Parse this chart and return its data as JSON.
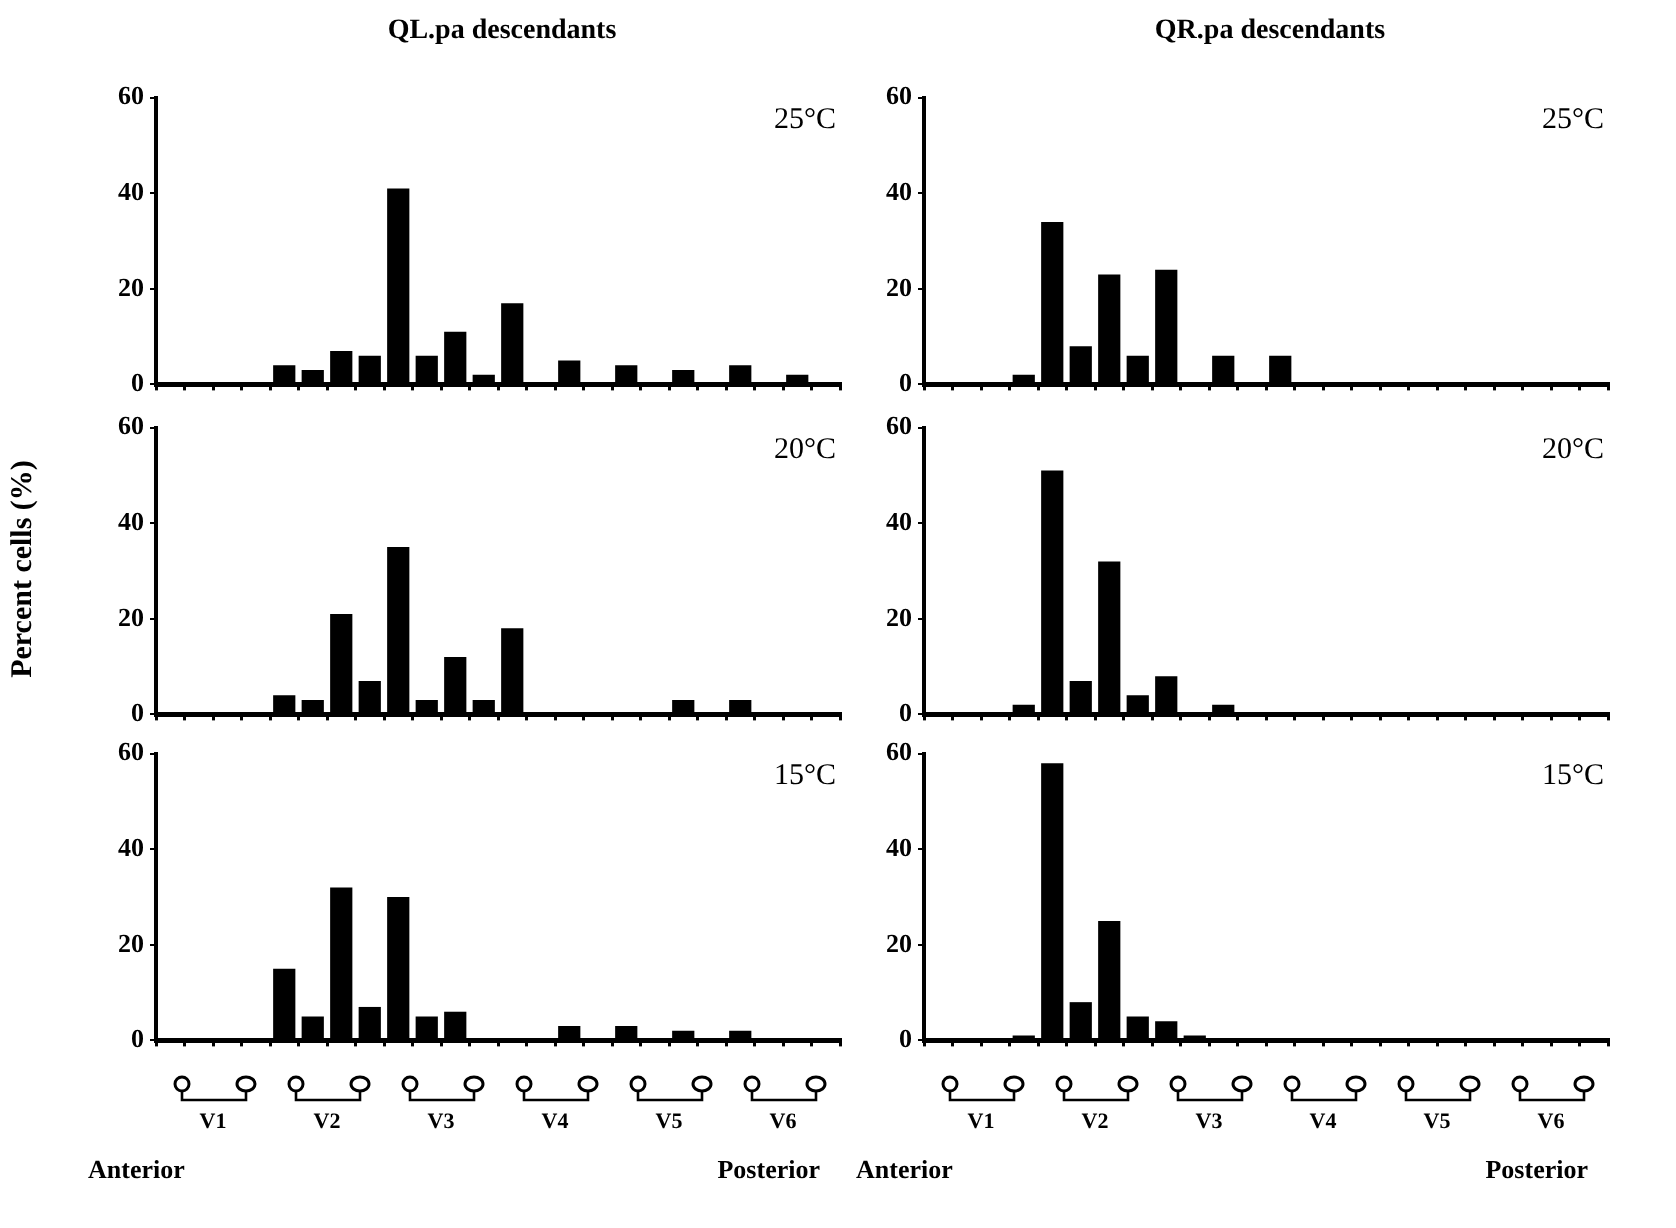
{
  "chart_data": [
    {
      "type": "bar",
      "title": "QL.pa descendants",
      "subtitle": "25°C",
      "categories": [
        null,
        null,
        null,
        null,
        null,
        null,
        null,
        null,
        null,
        null,
        null,
        null,
        null,
        null,
        null,
        null,
        null,
        null,
        null,
        null,
        null,
        null,
        null,
        null
      ],
      "values": [
        0,
        0,
        0,
        0,
        4,
        3,
        7,
        6,
        41,
        6,
        11,
        2,
        17,
        0,
        5,
        0,
        4,
        0,
        3,
        0,
        4,
        0,
        2,
        0
      ],
      "color": "#000000",
      "ylim": [
        0,
        60
      ],
      "yticks": [
        0,
        20,
        40,
        60
      ],
      "grid": false,
      "legend": false,
      "tick_labels": "y"
    },
    {
      "type": "bar",
      "title": "QR.pa descendants",
      "subtitle": "25°C",
      "categories": [
        null,
        null,
        null,
        null,
        null,
        null,
        null,
        null,
        null,
        null,
        null,
        null,
        null,
        null,
        null,
        null,
        null,
        null,
        null,
        null,
        null,
        null,
        null,
        null
      ],
      "values": [
        0,
        0,
        0,
        2,
        34,
        8,
        23,
        6,
        24,
        0,
        6,
        0,
        6,
        0,
        0,
        0,
        0,
        0,
        0,
        0,
        0,
        0,
        0,
        0
      ],
      "color": "#000000",
      "ylim": [
        0,
        60
      ],
      "yticks": [
        0,
        20,
        40,
        60
      ],
      "grid": false,
      "legend": false,
      "tick_labels": "y"
    },
    {
      "type": "bar",
      "subtitle": "20°C",
      "ylabel": "Percent cells (%)",
      "categories": [
        null,
        null,
        null,
        null,
        null,
        null,
        null,
        null,
        null,
        null,
        null,
        null,
        null,
        null,
        null,
        null,
        null,
        null,
        null,
        null,
        null,
        null,
        null,
        null
      ],
      "values": [
        0,
        0,
        0,
        0,
        4,
        3,
        21,
        7,
        35,
        3,
        12,
        3,
        18,
        0,
        0,
        0,
        0,
        0,
        3,
        0,
        3,
        0,
        0,
        0
      ],
      "color": "#000000",
      "ylim": [
        0,
        60
      ],
      "yticks": [
        0,
        20,
        40,
        60
      ],
      "grid": false,
      "legend": false,
      "tick_labels": "y"
    },
    {
      "type": "bar",
      "subtitle": "20°C",
      "categories": [
        null,
        null,
        null,
        null,
        null,
        null,
        null,
        null,
        null,
        null,
        null,
        null,
        null,
        null,
        null,
        null,
        null,
        null,
        null,
        null,
        null,
        null,
        null,
        null
      ],
      "values": [
        0,
        0,
        0,
        2,
        51,
        7,
        32,
        4,
        8,
        0,
        2,
        0,
        0,
        0,
        0,
        0,
        0,
        0,
        0,
        0,
        0,
        0,
        0,
        0
      ],
      "color": "#000000",
      "ylim": [
        0,
        60
      ],
      "yticks": [
        0,
        20,
        40,
        60
      ],
      "grid": false,
      "legend": false,
      "tick_labels": "y"
    },
    {
      "type": "bar",
      "subtitle": "15°C",
      "categories": [
        null,
        null,
        null,
        null,
        null,
        null,
        null,
        null,
        null,
        null,
        null,
        null,
        null,
        null,
        null,
        null,
        null,
        null,
        null,
        null,
        null,
        null,
        null,
        null
      ],
      "values": [
        0,
        0,
        0,
        0,
        15,
        5,
        32,
        7,
        30,
        5,
        6,
        0,
        0,
        0,
        3,
        0,
        3,
        0,
        2,
        0,
        2,
        0,
        0,
        0
      ],
      "color": "#000000",
      "ylim": [
        0,
        60
      ],
      "yticks": [
        0,
        20,
        40,
        60
      ],
      "grid": false,
      "legend": false,
      "tick_labels": "y",
      "annotations": [
        "V1",
        "V2",
        "V3",
        "V4",
        "V5",
        "V6",
        "Anterior",
        "Posterior"
      ]
    },
    {
      "type": "bar",
      "subtitle": "15°C",
      "categories": [
        null,
        null,
        null,
        null,
        null,
        null,
        null,
        null,
        null,
        null,
        null,
        null,
        null,
        null,
        null,
        null,
        null,
        null,
        null,
        null,
        null,
        null,
        null,
        null
      ],
      "values": [
        0,
        0,
        0,
        1,
        58,
        8,
        25,
        5,
        4,
        1,
        0,
        0,
        0,
        0,
        0,
        0,
        0,
        0,
        0,
        0,
        0,
        0,
        0,
        0
      ],
      "color": "#000000",
      "ylim": [
        0,
        60
      ],
      "yticks": [
        0,
        20,
        40,
        60
      ],
      "grid": false,
      "legend": false,
      "tick_labels": "y",
      "annotations": [
        "V1",
        "V2",
        "V3",
        "V4",
        "V5",
        "V6",
        "Anterior",
        "Posterior"
      ]
    }
  ]
}
